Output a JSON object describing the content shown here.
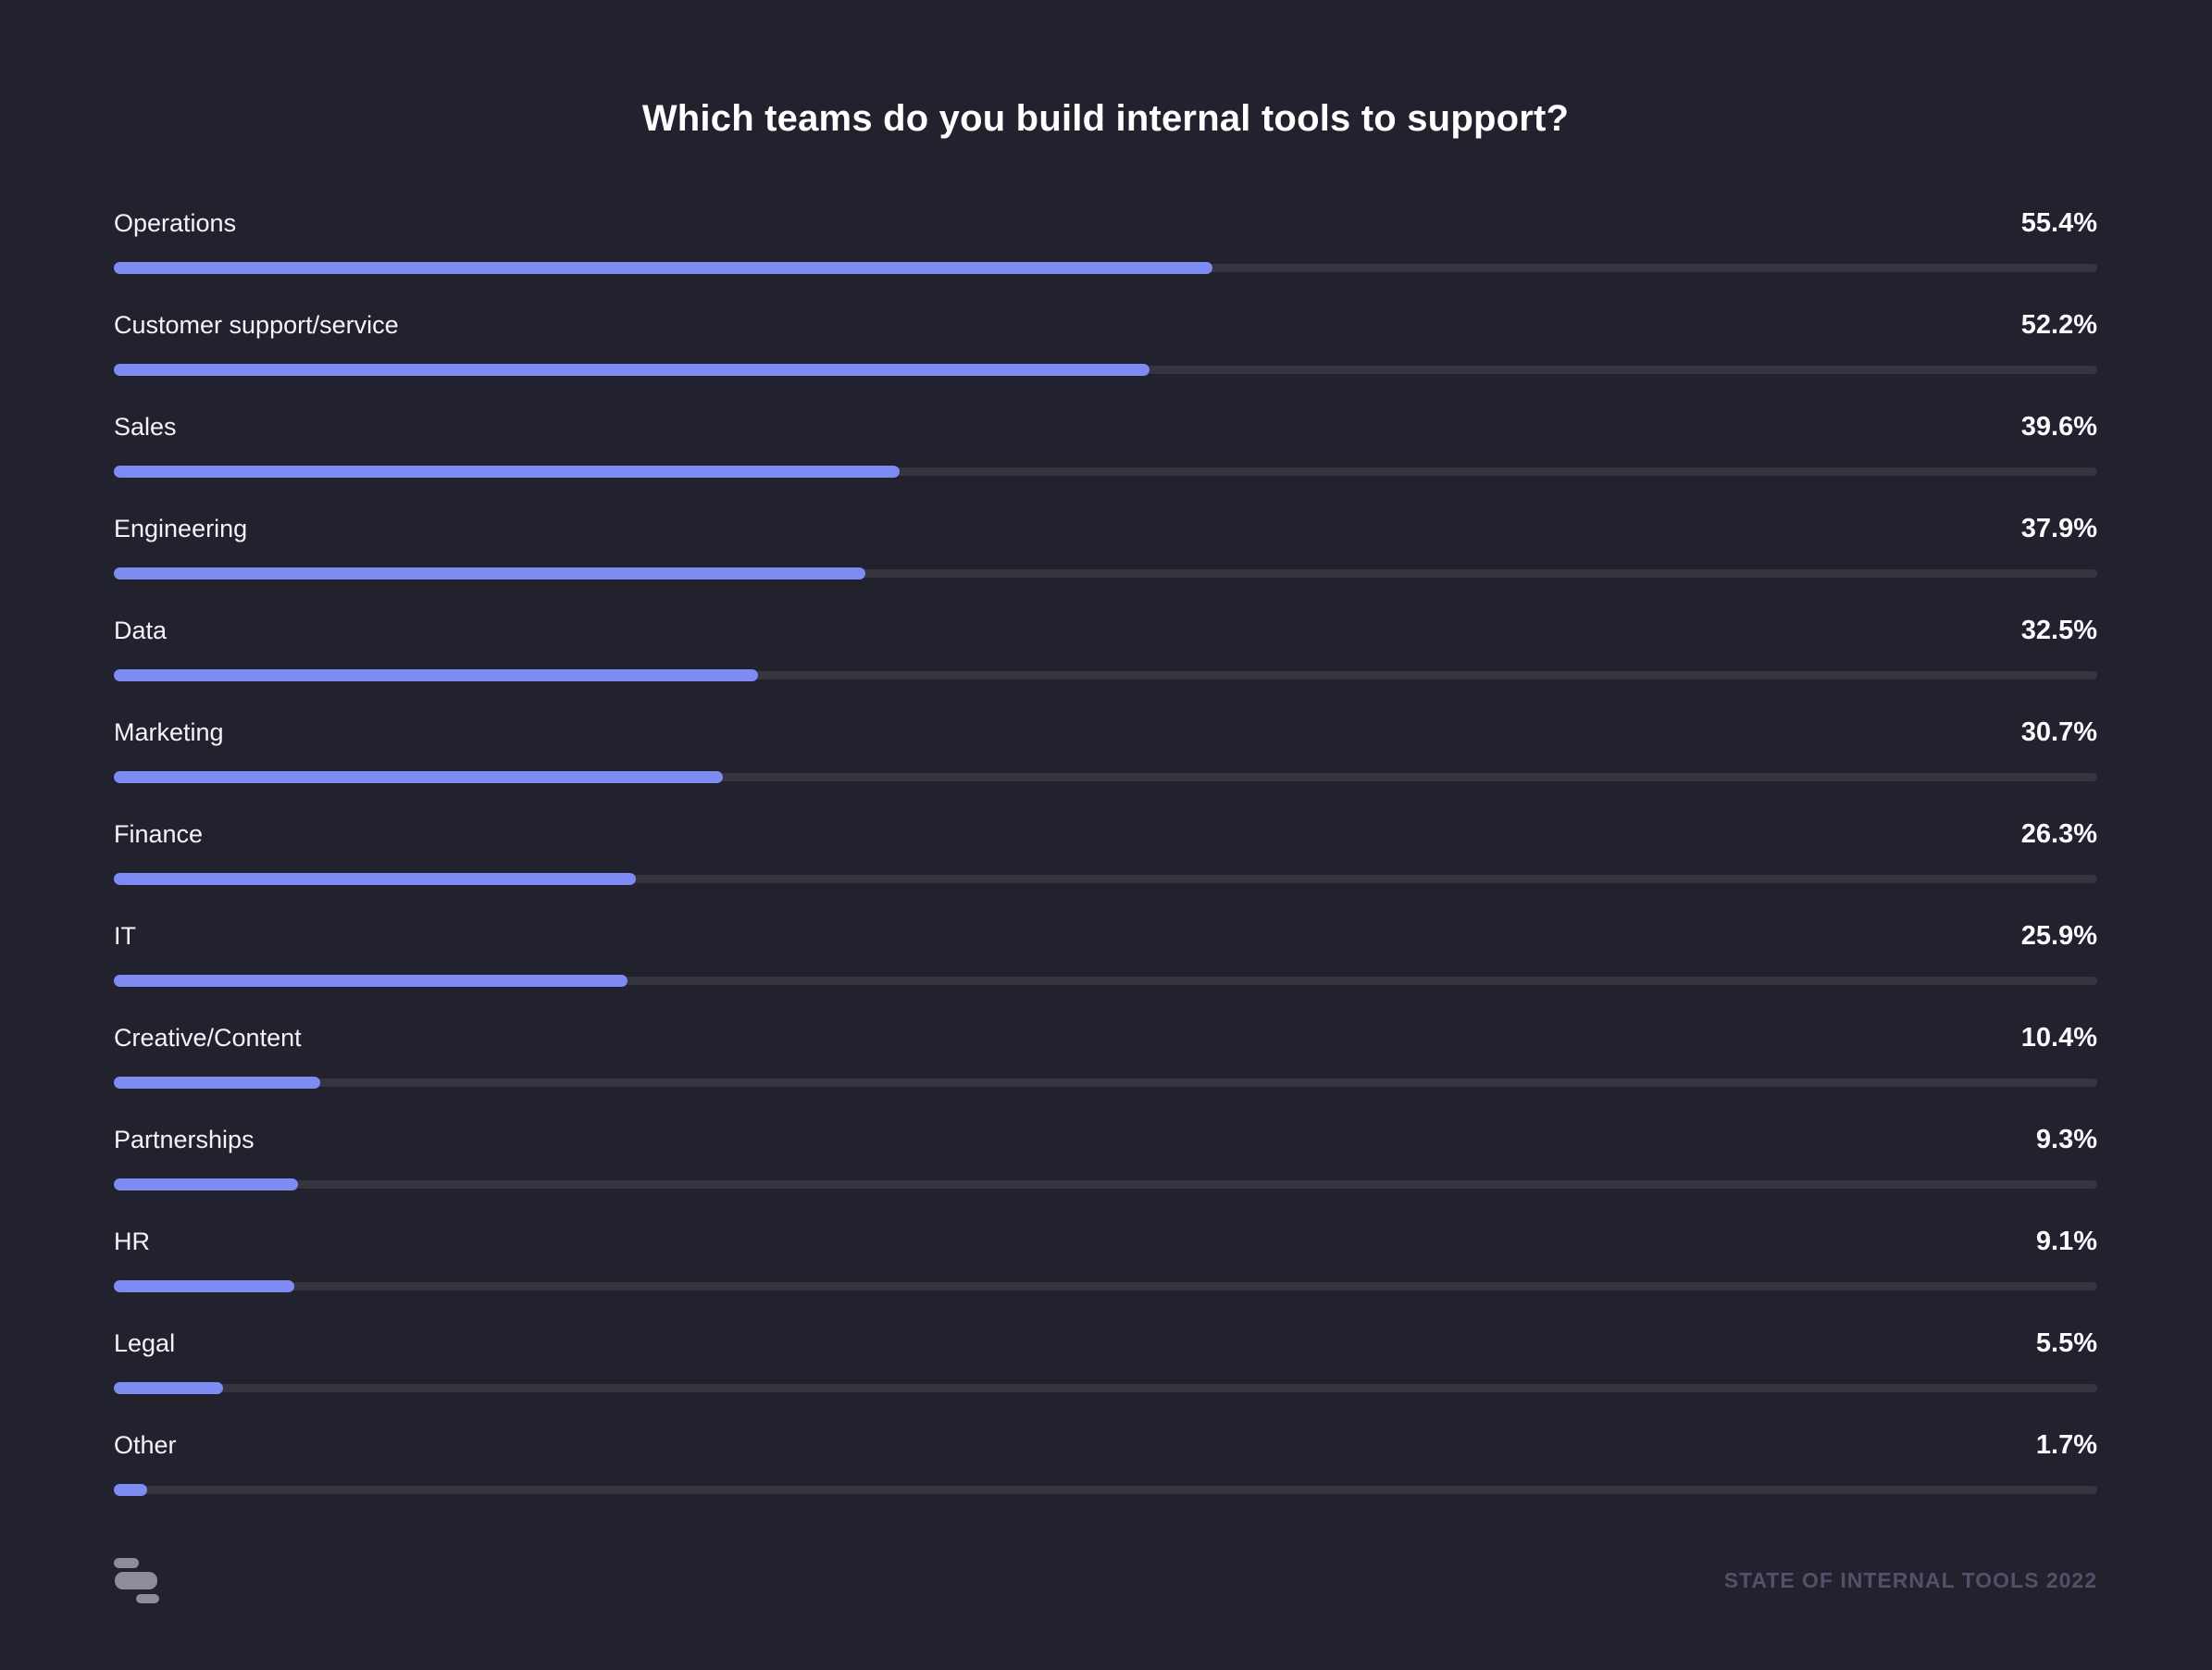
{
  "page": {
    "background": "#22212E"
  },
  "chart_data": {
    "type": "bar",
    "orientation": "horizontal",
    "title": "Which teams do you build internal tools to support?",
    "categories": [
      "Operations",
      "Customer support/service",
      "Sales",
      "Engineering",
      "Data",
      "Marketing",
      "Finance",
      "IT",
      "Creative/Content",
      "Partnerships",
      "HR",
      "Legal",
      "Other"
    ],
    "values": [
      55.4,
      52.2,
      39.6,
      37.9,
      32.5,
      30.7,
      26.3,
      25.9,
      10.4,
      9.3,
      9.1,
      5.5,
      1.7
    ],
    "value_labels": [
      "55.4%",
      "52.2%",
      "39.6%",
      "37.9%",
      "32.5%",
      "30.7%",
      "26.3%",
      "25.9%",
      "10.4%",
      "9.3%",
      "9.1%",
      "5.5%",
      "1.7%"
    ],
    "xlim": [
      0,
      100
    ],
    "grid": "off",
    "legend": "none",
    "bar_color": "#7D8BF2",
    "track_color": "#35343F",
    "label_color": "#F4F4F8",
    "value_color": "#FBFBFD"
  },
  "footer": {
    "logo": "retool-logo",
    "caption": "STATE OF INTERNAL TOOLS 2022"
  }
}
